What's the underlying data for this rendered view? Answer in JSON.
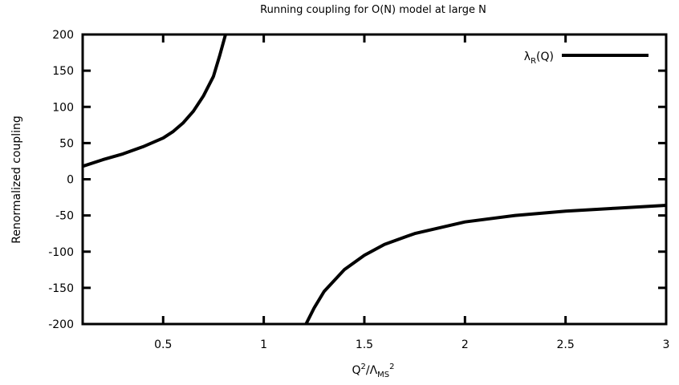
{
  "chart_data": {
    "type": "line",
    "title": "Running coupling for O(N) model at large N",
    "xlabel": {
      "base": "Q",
      "sup": "2",
      "mid": "/Λ",
      "sub": "MS",
      "sup2": "2"
    },
    "ylabel": "Renormalized coupling",
    "xlim": [
      0.1,
      3.0
    ],
    "ylim": [
      -200,
      200
    ],
    "xticks": [
      0.5,
      1,
      1.5,
      2,
      2.5,
      3
    ],
    "xtick_labels": [
      "0.5",
      "1",
      "1.5",
      "2",
      "2.5",
      "3"
    ],
    "yticks": [
      200,
      150,
      100,
      50,
      0,
      -50,
      -100,
      -150,
      -200
    ],
    "ytick_labels": [
      "200",
      "150",
      "100",
      "50",
      "0",
      "-50",
      "-100",
      "-150",
      "-200"
    ],
    "grid": false,
    "legend_position": "top-right",
    "series": [
      {
        "name": "λ_R(Q)",
        "legend": {
          "base": "λ",
          "sub": "R",
          "rest": "(Q)"
        },
        "color": "#000000",
        "segments": [
          [
            [
              0.1,
              18
            ],
            [
              0.2,
              27
            ],
            [
              0.3,
              35
            ],
            [
              0.4,
              45
            ],
            [
              0.5,
              57
            ],
            [
              0.55,
              66
            ],
            [
              0.6,
              78
            ],
            [
              0.65,
              94
            ],
            [
              0.7,
              115
            ],
            [
              0.75,
              142
            ],
            [
              0.78,
              170
            ],
            [
              0.81,
              200
            ]
          ],
          [
            [
              1.21,
              -200
            ],
            [
              1.25,
              -178
            ],
            [
              1.3,
              -155
            ],
            [
              1.4,
              -125
            ],
            [
              1.5,
              -105
            ],
            [
              1.6,
              -90
            ],
            [
              1.75,
              -75
            ],
            [
              2.0,
              -59
            ],
            [
              2.25,
              -50
            ],
            [
              2.5,
              -44
            ],
            [
              2.75,
              -40
            ],
            [
              3.0,
              -36
            ]
          ]
        ]
      }
    ]
  }
}
